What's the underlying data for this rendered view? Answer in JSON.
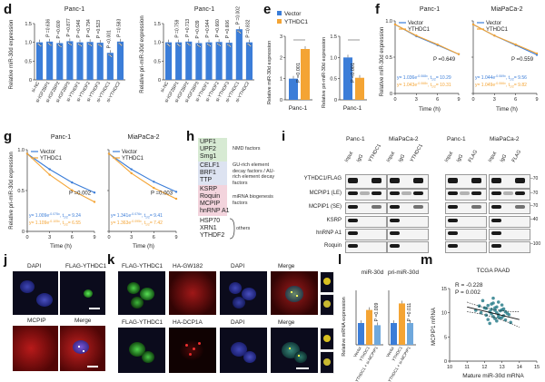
{
  "panel_labels": [
    "d",
    "e",
    "f",
    "g",
    "h",
    "i",
    "j",
    "k",
    "l",
    "m"
  ],
  "colors": {
    "vector": "#3b7dd8",
    "ythdc1": "#f4a434",
    "bar": "#3b7dd8",
    "scatter": "#2d7f8c"
  },
  "panel_d": {
    "left": {
      "title": "Panc-1",
      "ylabel": "Relative miR-30d expression",
      "categories": [
        "si-NC",
        "si-IGF2BP1",
        "si-IGF2BP2",
        "si-IGF2BP3",
        "si-YTHDF1",
        "si-YTHDF2",
        "si-YTHDF3",
        "si-YTHDC1",
        "si-YTHDC2"
      ],
      "values": [
        1.0,
        1.02,
        0.98,
        1.03,
        1.0,
        1.01,
        0.99,
        0.72,
        1.02
      ],
      "pvals": [
        "P =0.636",
        "P =0.600",
        "P =0.877",
        "P =0.946",
        "P =0.794",
        "P =0.523",
        "P <0.001",
        "P =0.583"
      ],
      "yticks": [
        "0",
        "0.5",
        "1.0",
        "1.5"
      ]
    },
    "right": {
      "title": "Panc-1",
      "ylabel": "Relative pri-miR-30d expression",
      "categories": [
        "si-NC",
        "si-IGF2BP1",
        "si-IGF2BP2",
        "si-IGF2BP3",
        "si-YTHDF1",
        "si-YTHDF2",
        "si-YTHDF3",
        "si-YTHDC1",
        "si-YTHDC2"
      ],
      "values": [
        1.0,
        1.0,
        1.02,
        0.98,
        1.0,
        1.01,
        0.99,
        1.35,
        1.0
      ],
      "pvals": [
        "P =0.759",
        "P =0.713",
        "P =0.639",
        "P =0.944",
        "P =0.660",
        "P =0.606",
        "P =0.002",
        "P =0.832"
      ],
      "yticks": [
        "0",
        "0.5",
        "1.0",
        "1.5"
      ]
    }
  },
  "panel_e": {
    "legend": [
      "Vector",
      "YTHDC1"
    ],
    "left": {
      "ylabel": "Relative miR-30d expression",
      "xlabel": "Panc-1",
      "values": [
        1.0,
        2.4
      ],
      "pval": "P =0.001",
      "yticks": [
        "0",
        "1",
        "2",
        "3"
      ]
    },
    "right": {
      "ylabel": "Relative pri-miR-30d expression",
      "xlabel": "Panc-1",
      "values": [
        1.0,
        0.52
      ],
      "pval": "P <0.001",
      "yticks": [
        "0",
        "0.5",
        "1.0",
        "1.5"
      ]
    }
  },
  "panel_f": {
    "ylabel": "Relative miR-30d expression",
    "xlabel": "Time (h)",
    "xticks": [
      "0",
      "3",
      "6",
      "9"
    ],
    "yticks": [
      "0",
      "0.5",
      "1.0"
    ],
    "legend": [
      "Vector",
      "YTHDC1"
    ],
    "charts": [
      {
        "title": "Panc-1",
        "pval": "P =0.649",
        "eq_vector": "y= 1.036e",
        "eq_vector_exp": "-0.068x",
        "eq_vector_t": ", t",
        "eq_vector_half": "1/2",
        "eq_vector_v": "= 10.29",
        "eq_ythdc1": "y= 1.043e",
        "eq_ythdc1_exp": "-0.068x",
        "eq_ythdc1_half": "1/2",
        "eq_ythdc1_v": "= 10.31"
      },
      {
        "title": "MiaPaCa-2",
        "pval": "P =0.559",
        "eq_vector": "y= 1.044e",
        "eq_vector_exp": "-0.069x",
        "eq_vector_t": ", t",
        "eq_vector_half": "1/2",
        "eq_vector_v": "= 9.56",
        "eq_ythdc1": "y= 1.049e",
        "eq_ythdc1_exp": "-0.066x",
        "eq_ythdc1_half": "1/2",
        "eq_ythdc1_v": "= 9.82"
      }
    ],
    "chart_data": [
      {
        "type": "line",
        "x": [
          0,
          3,
          6,
          9
        ],
        "series": [
          {
            "name": "Vector",
            "values": [
              1.0,
              0.83,
              0.7,
              0.57
            ]
          },
          {
            "name": "YTHDC1",
            "values": [
              1.0,
              0.84,
              0.71,
              0.57
            ]
          }
        ]
      },
      {
        "type": "line",
        "x": [
          0,
          3,
          6,
          9
        ],
        "series": [
          {
            "name": "Vector",
            "values": [
              1.0,
              0.84,
              0.7,
              0.56
            ]
          },
          {
            "name": "YTHDC1",
            "values": [
              1.0,
              0.84,
              0.71,
              0.58
            ]
          }
        ]
      }
    ]
  },
  "panel_g": {
    "ylabel": "Relative pri-miR-30d expression",
    "xlabel": "Time (h)",
    "xticks": [
      "0",
      "3",
      "6",
      "9"
    ],
    "yticks": [
      "0",
      "0.5",
      "1.0"
    ],
    "legend": [
      "Vector",
      "YTHDC1"
    ],
    "charts": [
      {
        "title": "Panc-1",
        "pval": "P =0.002",
        "eq_vector": "y= 1.009e",
        "eq_vector_exp": "-0.075x",
        "eq_vector_half": "1/2",
        "eq_vector_v": "= 9.24",
        "eq_ythdc1": "y= 1.109e",
        "eq_ythdc1_exp": "-0.105x",
        "eq_ythdc1_half": "1/2",
        "eq_ythdc1_v": "= 6.55"
      },
      {
        "title": "MiaPaCa-2",
        "pval": "P =0.003",
        "eq_vector": "y= 1.341e",
        "eq_vector_exp": "-0.076x",
        "eq_vector_half": "1/2",
        "eq_vector_v": "= 9.41",
        "eq_ythdc1": "y= 1.363e",
        "eq_ythdc1_exp": "-0.095x",
        "eq_ythdc1_half": "1/2",
        "eq_ythdc1_v": "= 7.42"
      }
    ],
    "chart_data": [
      {
        "type": "line",
        "x": [
          0,
          3,
          6,
          9
        ],
        "series": [
          {
            "name": "Vector",
            "values": [
              1.0,
              0.8,
              0.63,
              0.5
            ]
          },
          {
            "name": "YTHDC1",
            "values": [
              1.0,
              0.73,
              0.53,
              0.38
            ]
          }
        ]
      },
      {
        "type": "line",
        "x": [
          0,
          3,
          6,
          9
        ],
        "series": [
          {
            "name": "Vector",
            "values": [
              1.0,
              0.8,
              0.64,
              0.51
            ]
          },
          {
            "name": "YTHDC1",
            "values": [
              1.0,
              0.75,
              0.56,
              0.42
            ]
          }
        ]
      }
    ]
  },
  "panel_h": {
    "groups": [
      {
        "items": [
          "UPF1",
          "UPF2",
          "Smg1"
        ],
        "desc": "NMD factors",
        "color": "#d7ead3"
      },
      {
        "items": [
          "CELF1",
          "BRF1",
          "TTP"
        ],
        "desc": "GU-rich element decay factors / AU-rich element decay factors",
        "color": "#dde3f1"
      },
      {
        "items": [
          "KSRP",
          "Roquin",
          "MCPIP",
          "hnRNP A1"
        ],
        "desc": "miRNA biogenesis factors",
        "color": "#f3d4dd"
      },
      {
        "items": [
          "HSP70",
          "XRN1",
          "YTHDF2"
        ],
        "desc": "others",
        "color": "#ffffff"
      }
    ]
  },
  "panel_i": {
    "blocks": [
      {
        "cell": "Panc-1",
        "lanes": [
          "Input",
          "IgG",
          "YTHDC1"
        ]
      },
      {
        "cell": "MiaPaCa-2",
        "lanes": [
          "Input",
          "IgG",
          "YTHDC1"
        ]
      },
      {
        "cell": "Panc-1",
        "lanes": [
          "Input",
          "IgG",
          "FLAG"
        ]
      },
      {
        "cell": "MiaPaCa-2",
        "lanes": [
          "Input",
          "IgG",
          "FLAG"
        ]
      }
    ],
    "rows": [
      "YTHDC1/FLAG",
      "MCPIP1 (LE)",
      "MCPIP1 (SE)",
      "KSRP",
      "hnRNP A1",
      "Roquin"
    ],
    "markers": [
      "70",
      "70",
      "70",
      "40",
      "100"
    ]
  },
  "panel_j": {
    "labels": [
      "DAPI",
      "FLAG-YTHDC1",
      "MCPIP",
      "Merge"
    ]
  },
  "panel_k": {
    "row1": [
      "FLAG-YTHDC1",
      "HA-GW182",
      "DAPI",
      "Merge"
    ],
    "row2": [
      "FLAG-YTHDC1",
      "HA-DCP1A",
      "DAPI",
      "Merge"
    ]
  },
  "panel_l": {
    "left": {
      "title": "miR-30d",
      "pval": "P =0.009",
      "values": [
        1.0,
        1.6,
        0.9
      ]
    },
    "right": {
      "title": "pri-miR-30d",
      "pval": "P =0.011",
      "values": [
        1.0,
        1.9,
        1.0
      ]
    },
    "ylabel": "Relative mRNA expression",
    "xcats": [
      "Vector",
      "YTHDC1",
      "YTHDC1 + si-MCPIP1"
    ]
  },
  "panel_m": {
    "title": "TCGA PAAD",
    "r_label": "R = -0.228",
    "p_label": "P = 0.002",
    "xlabel": "Mature miR-30d mRNA",
    "ylabel": "MCPIP1 mRNA",
    "xticks": [
      "10",
      "11",
      "12",
      "13",
      "14",
      "15"
    ],
    "yticks": [
      "0",
      "5",
      "10",
      "15"
    ],
    "chart_data": {
      "type": "scatter",
      "x": [
        11.5,
        11.8,
        12.0,
        12.1,
        12.2,
        12.3,
        12.4,
        12.5,
        12.6,
        12.6,
        12.7,
        12.8,
        12.9,
        13.0,
        13.1,
        13.2,
        13.3,
        13.5,
        11.9,
        12.2,
        12.4,
        12.5,
        12.7,
        12.8,
        13.0,
        13.1,
        12.3,
        12.6,
        12.9,
        13.4,
        12.1,
        12.5,
        12.8,
        13.2,
        11.7,
        12.4,
        12.7,
        13.0
      ],
      "y": [
        10.5,
        10.0,
        11.0,
        9.5,
        11.5,
        10.2,
        9.8,
        12.0,
        10.5,
        8.8,
        11.2,
        9.6,
        10.4,
        9.0,
        10.8,
        8.5,
        9.9,
        8.0,
        12.5,
        8.6,
        11.8,
        9.2,
        10.0,
        12.2,
        10.6,
        9.4,
        7.8,
        11.0,
        8.9,
        9.6,
        10.9,
        13.0,
        9.1,
        10.2,
        11.4,
        10.7,
        8.3,
        11.6
      ]
    }
  }
}
